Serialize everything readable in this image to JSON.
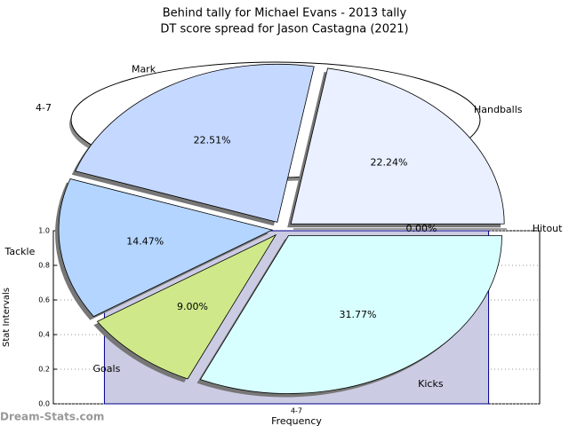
{
  "chart_data": [
    {
      "type": "bar",
      "title": "Behind tally for Michael Evans - 2013 tally",
      "categories": [
        "4-7"
      ],
      "values": [
        1
      ],
      "color": "#cbcbe3",
      "edge_color": "#00008b",
      "xlabel": "Frequency",
      "ylabel": "Stat Intervals",
      "ylim": [
        0,
        1
      ],
      "yticks": [
        {
          "value": 0,
          "label": "0.0"
        },
        {
          "value": 0.2,
          "label": "0.2"
        },
        {
          "value": 0.4,
          "label": "0.4"
        },
        {
          "value": 0.6,
          "label": "0.6"
        },
        {
          "value": 0.8,
          "label": "0.8"
        },
        {
          "value": 1,
          "label": "1.0"
        }
      ],
      "grid": true
    },
    {
      "type": "pie",
      "title": "DT score spread for Jason Castagna (2021)",
      "categories": [
        "Handballs",
        "Mark",
        "Tackle",
        "Goals",
        "Kicks",
        "Hitout"
      ],
      "values": [
        22.24,
        22.51,
        14.47,
        9.0,
        31.77,
        0.0
      ],
      "value_labels": [
        "22.24%",
        "22.51%",
        "14.47%",
        "9.00%",
        "31.77%",
        "0.00%"
      ],
      "colors": [
        "#eaf0ff",
        "#c5d8ff",
        "#b3d5ff",
        "#cfe98a",
        "#d8ffff",
        "#ffffff"
      ]
    }
  ],
  "watermark": "Dream-Stats.com"
}
